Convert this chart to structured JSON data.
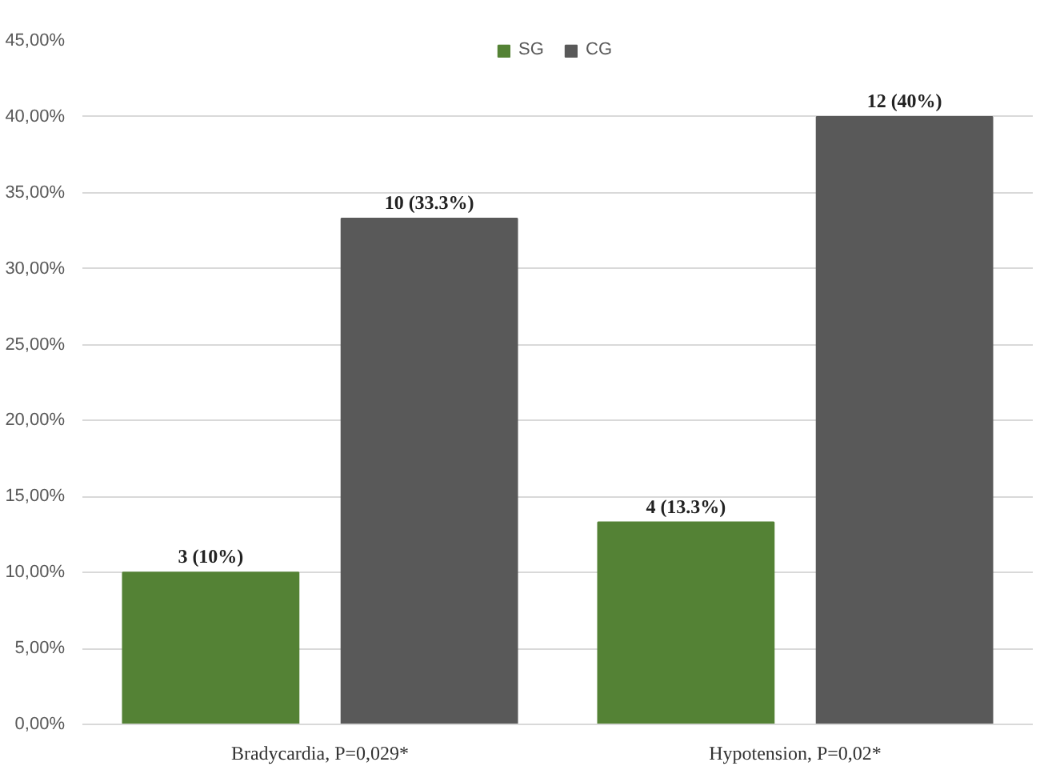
{
  "chart_data": {
    "type": "bar",
    "categories": [
      "Bradycardia, P=0,029*",
      "Hypotension, P=0,02*"
    ],
    "series": [
      {
        "name": "SG",
        "color": "#548235",
        "values": [
          10,
          13.3
        ],
        "value_labels": [
          "3 (10%)",
          "4 (13.3%)"
        ]
      },
      {
        "name": "CG",
        "color": "#595959",
        "values": [
          33.3,
          40
        ],
        "value_labels": [
          "10 (33.3%)",
          "12 (40%)"
        ]
      }
    ],
    "ylim": [
      0,
      45
    ],
    "yticks": [
      {
        "value": 0,
        "label": "0,00%"
      },
      {
        "value": 5,
        "label": "5,00%"
      },
      {
        "value": 10,
        "label": "10,00%"
      },
      {
        "value": 15,
        "label": "15,00%"
      },
      {
        "value": 20,
        "label": "20,00%"
      },
      {
        "value": 25,
        "label": "25,00%"
      },
      {
        "value": 30,
        "label": "30,00%"
      },
      {
        "value": 35,
        "label": "35,00%"
      },
      {
        "value": 40,
        "label": "40,00%"
      },
      {
        "value": 45,
        "label": "45,00%"
      }
    ],
    "grid": "y",
    "legend": "top"
  }
}
